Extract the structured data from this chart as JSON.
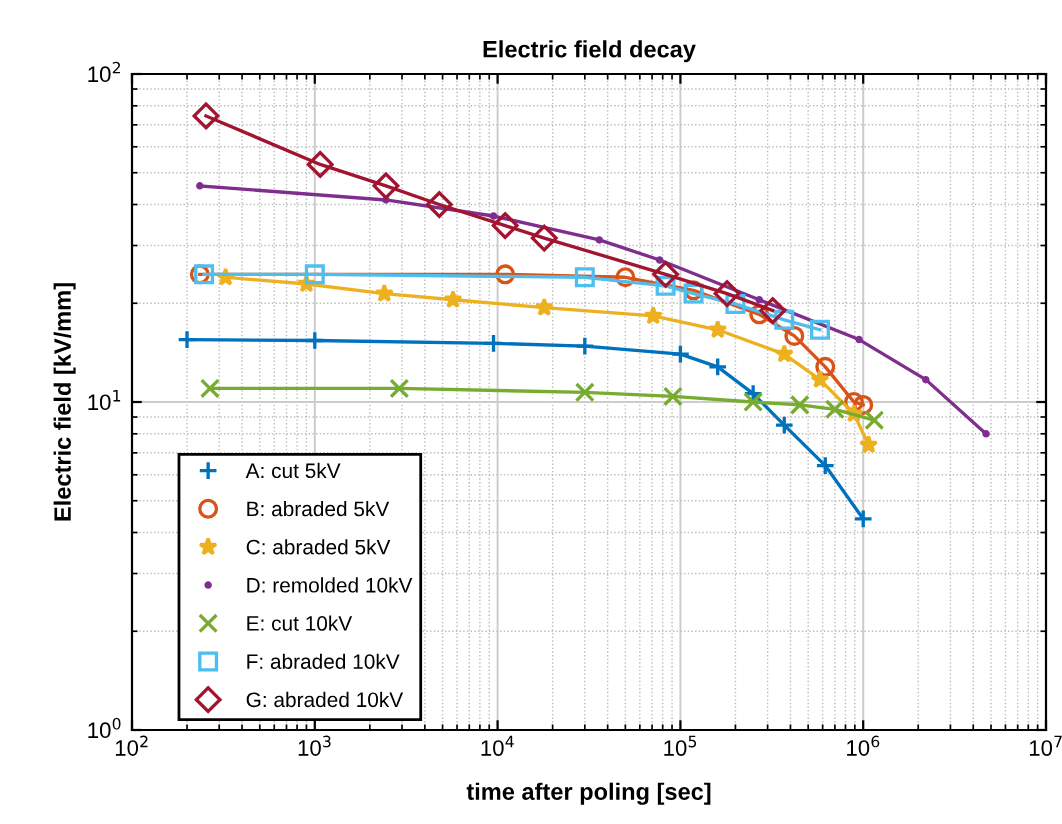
{
  "chart_data": {
    "type": "line",
    "title": "Electric field decay",
    "xlabel": "time after poling [sec]",
    "ylabel": "Electric field [kV/mm]",
    "log": "xy",
    "grid": true,
    "legend": "bottom left",
    "line_style": "solid",
    "xlim": [
      100,
      10000000
    ],
    "ylim": [
      1,
      100
    ],
    "xticks": [
      {
        "value": 100,
        "label": "10$^{2}$"
      },
      {
        "value": 1000,
        "label": "10$^{3}$"
      },
      {
        "value": 10000,
        "label": "10$^{4}$"
      },
      {
        "value": 100000,
        "label": "10$^{5}$"
      },
      {
        "value": 1000000,
        "label": "10$^{6}$"
      },
      {
        "value": 10000000,
        "label": "10$^{7}$"
      }
    ],
    "yticks": [
      {
        "value": 1,
        "label": "10$^{0}$"
      },
      {
        "value": 10,
        "label": "10$^{1}$"
      },
      {
        "value": 100,
        "label": "10$^{2}$"
      }
    ],
    "series": [
      {
        "name": "A: cut 5kV",
        "color": "#0072bd",
        "marker": "plus",
        "x": [
          200,
          1000,
          9500,
          30000,
          100000,
          160000,
          250000,
          370000,
          620000,
          1000000
        ],
        "values": [
          15.5,
          15.4,
          15.1,
          14.8,
          14,
          12.8,
          10.6,
          8.5,
          6.4,
          4.4
        ]
      },
      {
        "name": "B: abraded 5kV",
        "color": "#d95319",
        "marker": "circle",
        "x": [
          235,
          11000,
          50000,
          118000,
          270000,
          420000,
          620000,
          890000,
          1000000
        ],
        "values": [
          24.5,
          24.5,
          24,
          21.9,
          18.5,
          15.9,
          12.8,
          10,
          9.8
        ]
      },
      {
        "name": "C: abraded 5kV",
        "color": "#edb120",
        "marker": "star",
        "x": [
          325,
          900,
          2400,
          5700,
          18000,
          71000,
          160000,
          370000,
          580000,
          890000,
          1070000
        ],
        "values": [
          24,
          22.9,
          21.4,
          20.5,
          19.4,
          18.3,
          16.6,
          14,
          11.7,
          9.2,
          7.4
        ]
      },
      {
        "name": "D: remolded 10kV",
        "color": "#7e2f8e",
        "marker": "point",
        "x": [
          235,
          2450,
          9500,
          36000,
          77000,
          270000,
          950000,
          2200000,
          4700000
        ],
        "values": [
          45.6,
          41.3,
          36.9,
          31.2,
          27.1,
          20.5,
          15.5,
          11.7,
          8
        ]
      },
      {
        "name": "E: cut 10kV",
        "color": "#77ac30",
        "marker": "x",
        "x": [
          267,
          2900,
          30000,
          91000,
          250000,
          450000,
          700000,
          1150000
        ],
        "values": [
          11,
          11,
          10.7,
          10.4,
          10,
          9.8,
          9.5,
          8.8
        ]
      },
      {
        "name": "F: abraded 10kV",
        "color": "#4dbeee",
        "marker": "square",
        "x": [
          248,
          1000,
          30000,
          83000,
          118000,
          200000,
          370000,
          580000
        ],
        "values": [
          24.5,
          24.5,
          24,
          22.6,
          21.4,
          19.9,
          17.8,
          16.6
        ]
      },
      {
        "name": "G: abraded 10kV",
        "color": "#a2142f",
        "marker": "diamond",
        "x": [
          254,
          1070,
          2450,
          4800,
          11000,
          18000,
          83000,
          180000,
          320000
        ],
        "values": [
          74.5,
          53,
          45.6,
          40,
          34.5,
          31.6,
          24.5,
          21.4,
          19
        ]
      }
    ]
  }
}
